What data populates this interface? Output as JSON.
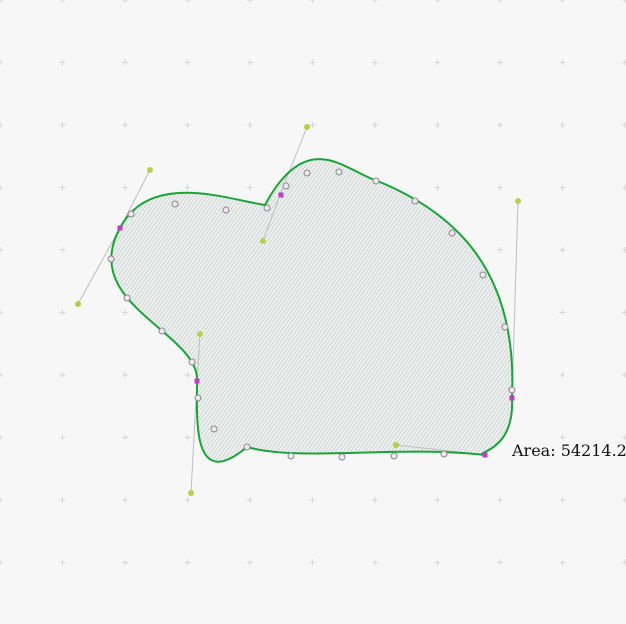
{
  "area_label": "Area: 54214.2",
  "colors": {
    "background": "#f7f7f7",
    "grid_cross": "#d6d6d6",
    "curve": "#1aa33a",
    "fill_hatch": "#9fb0ab",
    "fill_base": "#eef0ef",
    "handle_line": "#bdbdbd",
    "handle_point": "#b5cf4a",
    "anchor_point": "#c03ec0",
    "sample_point": "#8a8a8a"
  },
  "icons": {
    "handle": "control-handle-icon",
    "anchor": "anchor-point-icon",
    "sample": "sample-point-icon"
  }
}
